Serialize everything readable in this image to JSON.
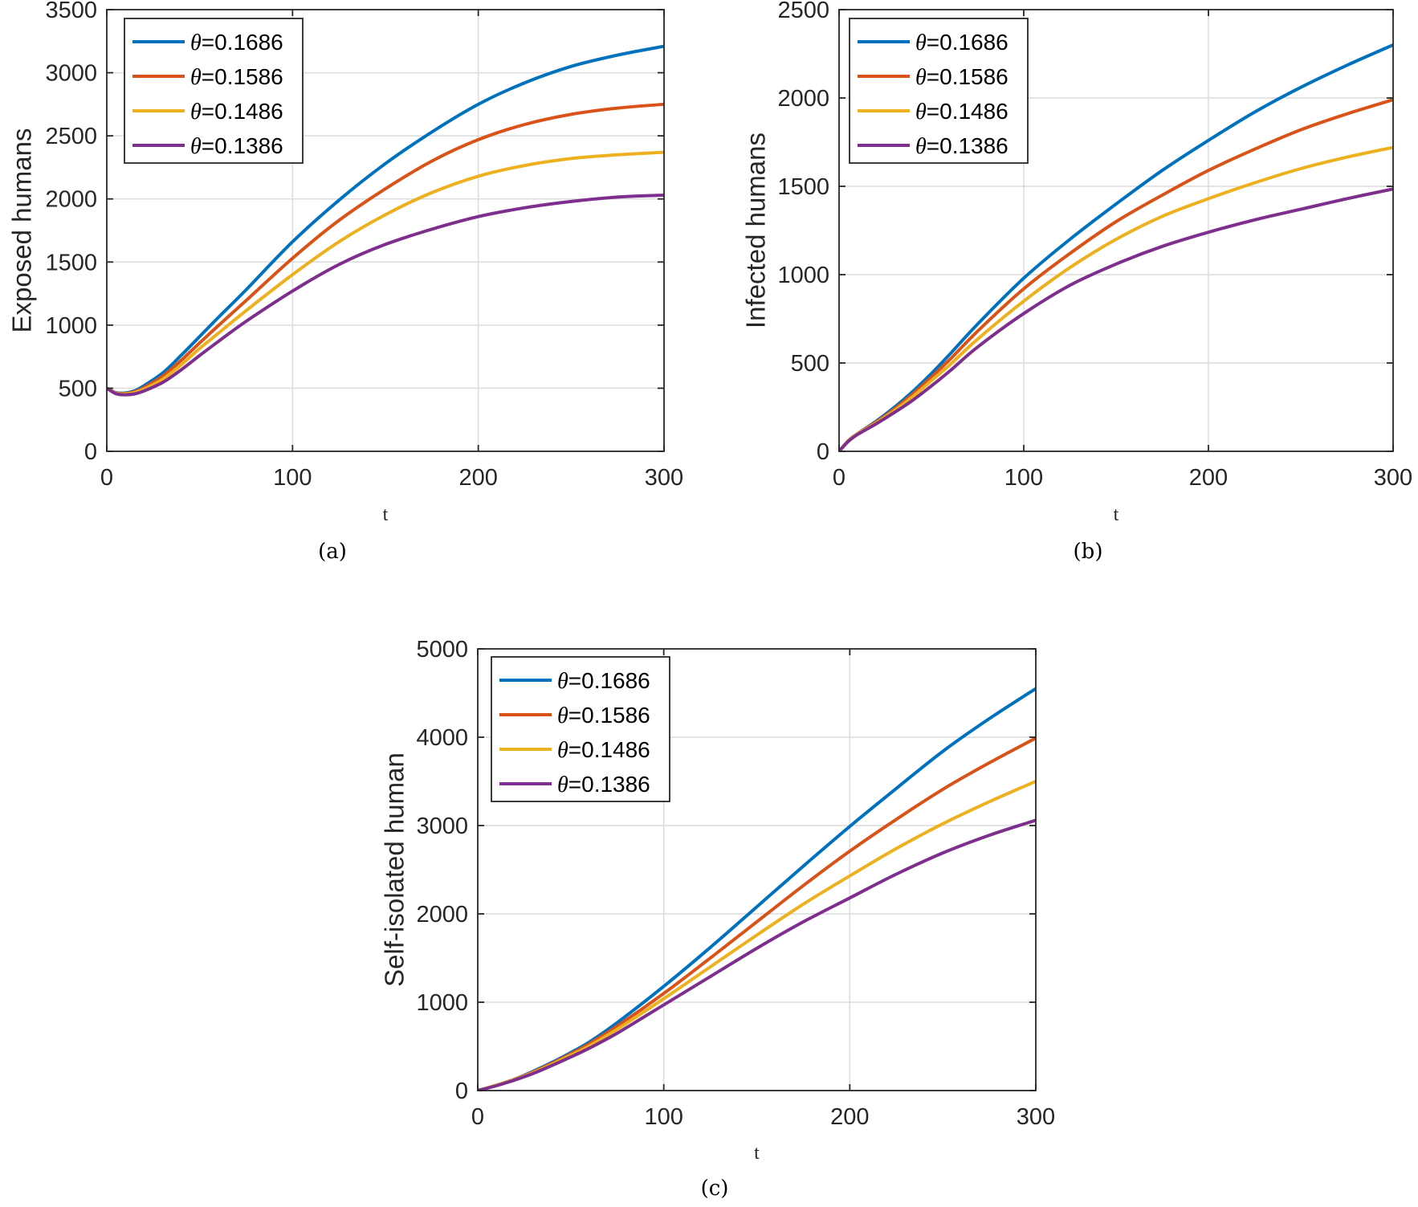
{
  "figure": {
    "captions": [
      "(a)",
      "(b)",
      "(c)"
    ]
  },
  "chart_data": [
    {
      "id": "a",
      "type": "line",
      "title": "",
      "xlabel": "t",
      "ylabel": "Exposed humans",
      "xlim": [
        0,
        300
      ],
      "ylim": [
        0,
        3500
      ],
      "xticks": [
        0,
        100,
        200,
        300
      ],
      "yticks": [
        0,
        500,
        1000,
        1500,
        2000,
        2500,
        3000,
        3500
      ],
      "grid": true,
      "legend_position": "top-left",
      "x": [
        0,
        5,
        10,
        15,
        20,
        30,
        40,
        50,
        60,
        75,
        100,
        125,
        150,
        175,
        200,
        225,
        250,
        275,
        300
      ],
      "series": [
        {
          "name": "θ=0.1686",
          "symbol": "θ",
          "value_label": "=0.1686",
          "color": "#0072BD",
          "values": [
            500,
            465,
            462,
            480,
            520,
            620,
            760,
            910,
            1060,
            1280,
            1660,
            1990,
            2280,
            2530,
            2750,
            2920,
            3050,
            3140,
            3210
          ]
        },
        {
          "name": "θ=0.1586",
          "symbol": "θ",
          "value_label": "=0.1586",
          "color": "#D95319",
          "values": [
            500,
            462,
            458,
            472,
            505,
            595,
            720,
            860,
            995,
            1195,
            1530,
            1830,
            2080,
            2300,
            2470,
            2590,
            2670,
            2720,
            2750
          ]
        },
        {
          "name": "θ=0.1486",
          "symbol": "θ",
          "value_label": "=0.1486",
          "color": "#EDB120",
          "values": [
            500,
            460,
            455,
            466,
            492,
            570,
            685,
            815,
            935,
            1115,
            1400,
            1660,
            1875,
            2050,
            2180,
            2265,
            2320,
            2350,
            2370
          ]
        },
        {
          "name": "θ=0.1386",
          "symbol": "θ",
          "value_label": "=0.1386",
          "color": "#7E2F8E",
          "values": [
            500,
            456,
            448,
            455,
            478,
            545,
            645,
            760,
            870,
            1030,
            1270,
            1480,
            1640,
            1760,
            1860,
            1930,
            1980,
            2015,
            2030
          ]
        }
      ]
    },
    {
      "id": "b",
      "type": "line",
      "title": "",
      "xlabel": "t",
      "ylabel": "Infected humans",
      "xlim": [
        0,
        300
      ],
      "ylim": [
        0,
        2500
      ],
      "xticks": [
        0,
        100,
        200,
        300
      ],
      "yticks": [
        0,
        500,
        1000,
        1500,
        2000,
        2500
      ],
      "grid": true,
      "legend_position": "top-left",
      "x": [
        0,
        5,
        10,
        20,
        30,
        40,
        50,
        60,
        75,
        100,
        125,
        150,
        175,
        200,
        225,
        250,
        275,
        300
      ],
      "series": [
        {
          "name": "θ=0.1686",
          "symbol": "θ",
          "value_label": "=0.1686",
          "color": "#0072BD",
          "values": [
            0,
            60,
            100,
            170,
            250,
            340,
            440,
            550,
            720,
            980,
            1200,
            1400,
            1590,
            1760,
            1920,
            2060,
            2185,
            2300
          ]
        },
        {
          "name": "θ=0.1586",
          "symbol": "θ",
          "value_label": "=0.1586",
          "color": "#D95319",
          "values": [
            0,
            60,
            100,
            165,
            240,
            325,
            420,
            520,
            680,
            920,
            1120,
            1300,
            1450,
            1590,
            1710,
            1820,
            1910,
            1990
          ]
        },
        {
          "name": "θ=0.1486",
          "symbol": "θ",
          "value_label": "=0.1486",
          "color": "#EDB120",
          "values": [
            0,
            58,
            98,
            160,
            230,
            310,
            400,
            490,
            635,
            850,
            1040,
            1200,
            1330,
            1430,
            1520,
            1600,
            1665,
            1720
          ]
        },
        {
          "name": "θ=0.1386",
          "symbol": "θ",
          "value_label": "=0.1386",
          "color": "#7E2F8E",
          "values": [
            0,
            56,
            95,
            155,
            220,
            290,
            370,
            455,
            590,
            780,
            940,
            1060,
            1160,
            1240,
            1310,
            1370,
            1430,
            1485
          ]
        }
      ]
    },
    {
      "id": "c",
      "type": "line",
      "title": "",
      "xlabel": "t",
      "ylabel": "Self-isolated human",
      "xlim": [
        0,
        300
      ],
      "ylim": [
        0,
        5000
      ],
      "xticks": [
        0,
        100,
        200,
        300
      ],
      "yticks": [
        0,
        1000,
        2000,
        3000,
        4000,
        5000
      ],
      "grid": true,
      "legend_position": "top-left",
      "x": [
        0,
        10,
        20,
        30,
        40,
        50,
        60,
        75,
        100,
        125,
        150,
        175,
        200,
        225,
        250,
        275,
        300
      ],
      "series": [
        {
          "name": "θ=0.1686",
          "symbol": "θ",
          "value_label": "=0.1686",
          "color": "#0072BD",
          "values": [
            0,
            60,
            130,
            220,
            320,
            430,
            550,
            770,
            1180,
            1620,
            2080,
            2540,
            2990,
            3420,
            3840,
            4210,
            4550
          ]
        },
        {
          "name": "θ=0.1586",
          "symbol": "θ",
          "value_label": "=0.1586",
          "color": "#D95319",
          "values": [
            0,
            60,
            128,
            212,
            310,
            415,
            530,
            730,
            1100,
            1500,
            1910,
            2320,
            2710,
            3070,
            3410,
            3710,
            3990
          ]
        },
        {
          "name": "θ=0.1486",
          "symbol": "θ",
          "value_label": "=0.1486",
          "color": "#EDB120",
          "values": [
            0,
            58,
            125,
            205,
            298,
            400,
            505,
            695,
            1040,
            1400,
            1760,
            2110,
            2430,
            2740,
            3020,
            3270,
            3500
          ]
        },
        {
          "name": "θ=0.1386",
          "symbol": "θ",
          "value_label": "=0.1386",
          "color": "#7E2F8E",
          "values": [
            0,
            55,
            120,
            195,
            285,
            380,
            480,
            650,
            970,
            1290,
            1610,
            1910,
            2180,
            2450,
            2690,
            2890,
            3060
          ]
        }
      ]
    }
  ]
}
